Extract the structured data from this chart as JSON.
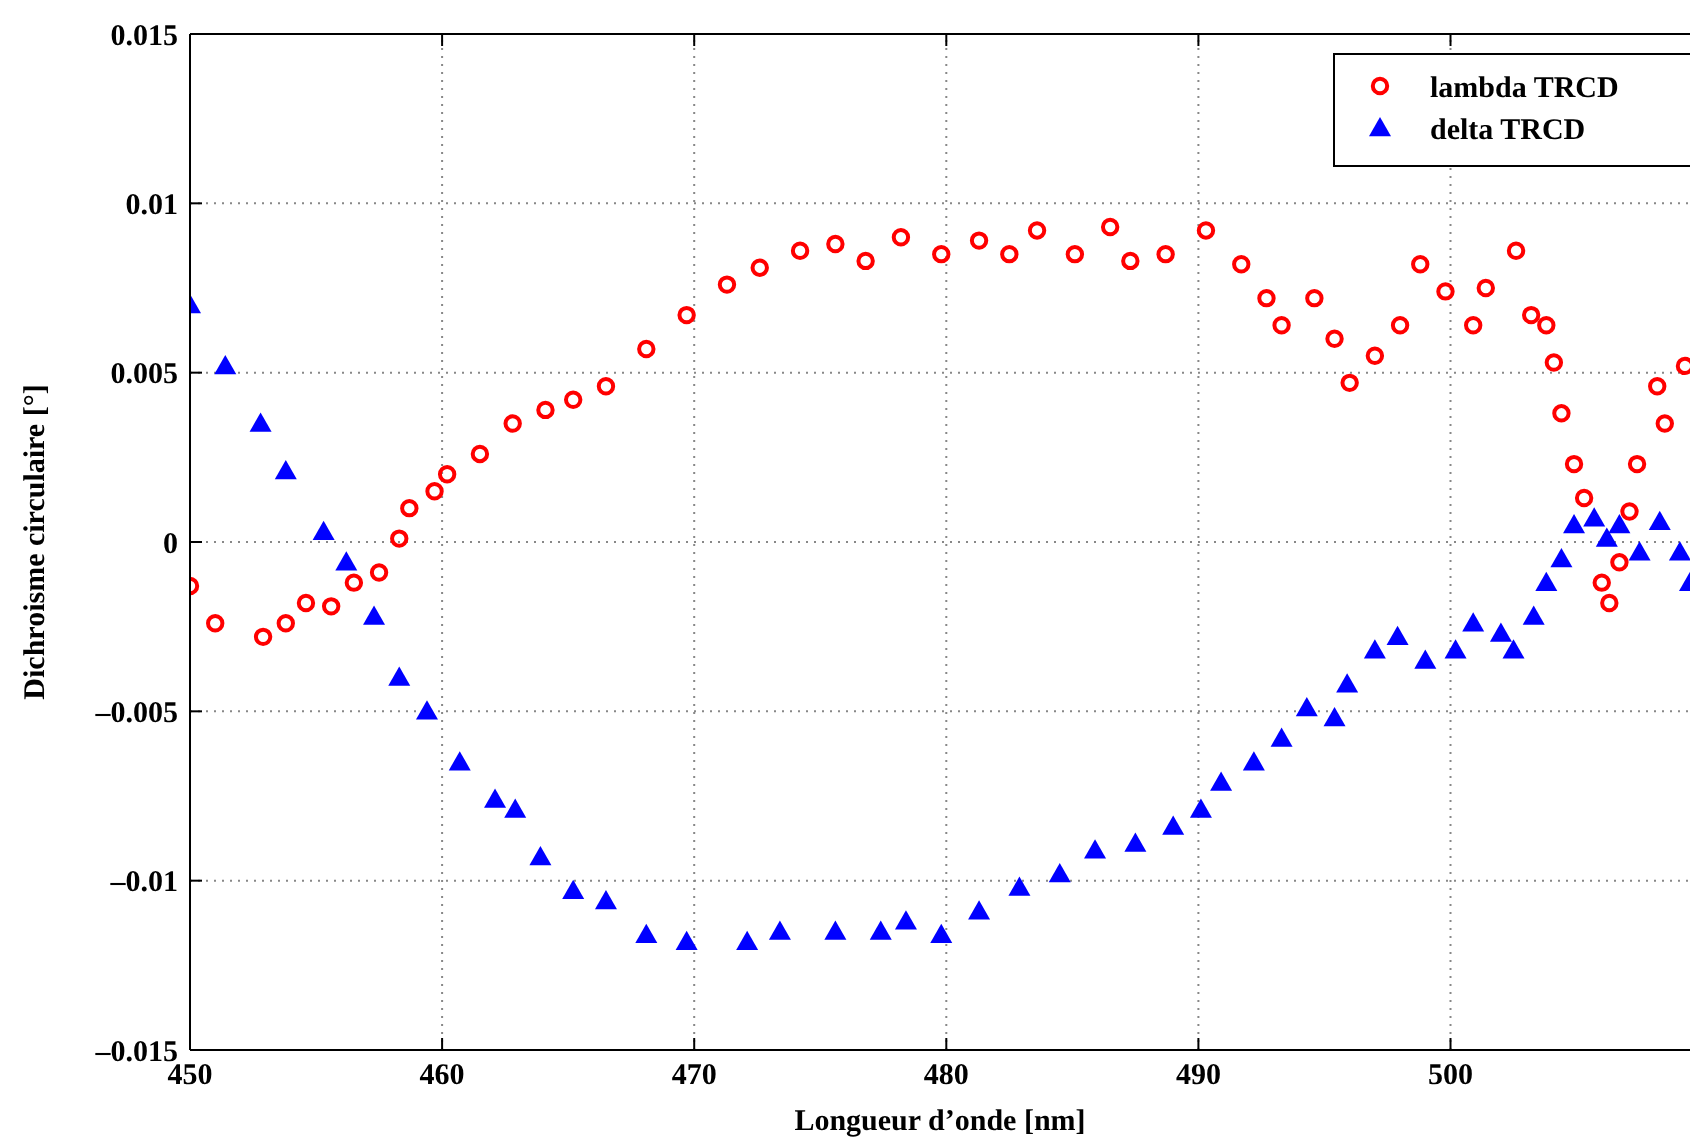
{
  "chart_data": {
    "type": "scatter",
    "xlabel": "Longueur d’onde [nm]",
    "ylabel": "Dichroisme circulaire [°]",
    "xlim": [
      450,
      509.5
    ],
    "ylim": [
      -0.015,
      0.015
    ],
    "xticks": [
      450,
      460,
      470,
      480,
      490,
      500
    ],
    "yticks": [
      {
        "value": -0.015,
        "label": "–0.015"
      },
      {
        "value": -0.01,
        "label": "–0.01"
      },
      {
        "value": -0.005,
        "label": "–0.005"
      },
      0,
      0.005,
      0.01,
      0.015
    ],
    "grid": true,
    "legend": "top right",
    "series": [
      {
        "name": "lambda TRCD",
        "color": "#ff0000",
        "marker": "circle",
        "x": [
          450,
          451,
          452.9,
          453.8,
          454.6,
          455.6,
          456.5,
          457.5,
          458.3,
          458.7,
          459.7,
          460.2,
          461.5,
          462.8,
          464.1,
          465.2,
          466.5,
          468.1,
          469.7,
          471.3,
          472.6,
          474.2,
          475.6,
          476.8,
          478.2,
          479.8,
          481.3,
          482.5,
          483.6,
          485.1,
          486.5,
          487.3,
          488.7,
          490.3,
          491.7,
          492.7,
          493.3,
          494.6,
          495.4,
          496,
          497,
          498,
          498.8,
          499.8,
          500.9,
          501.4,
          502.6,
          503.2,
          503.8,
          504.1,
          504.4,
          504.9,
          505.3,
          506,
          506.3,
          506.7,
          507.1,
          507.4,
          508.2,
          508.5,
          509.3
        ],
        "values": [
          -0.0013,
          -0.0024,
          -0.0028,
          -0.0024,
          -0.0018,
          -0.0019,
          -0.0012,
          -0.0009,
          0.0001,
          0.001,
          0.0015,
          0.002,
          0.0026,
          0.0035,
          0.0039,
          0.0042,
          0.0046,
          0.0057,
          0.0067,
          0.0076,
          0.0081,
          0.0086,
          0.0088,
          0.0083,
          0.009,
          0.0085,
          0.0089,
          0.0085,
          0.0092,
          0.0085,
          0.0093,
          0.0083,
          0.0085,
          0.0092,
          0.0082,
          0.0072,
          0.0064,
          0.0072,
          0.006,
          0.0047,
          0.0055,
          0.0064,
          0.0082,
          0.0074,
          0.0064,
          0.0075,
          0.0086,
          0.0067,
          0.0064,
          0.0053,
          0.0038,
          0.0023,
          0.0013,
          -0.0012,
          -0.0018,
          -0.0006,
          0.0009,
          0.0023,
          0.0046,
          0.0035,
          0.0052
        ]
      },
      {
        "name": "delta TRCD",
        "color": "#0000ff",
        "marker": "triangle",
        "x": [
          450,
          451.4,
          452.8,
          453.8,
          455.3,
          456.2,
          457.3,
          458.3,
          459.4,
          460.7,
          462.1,
          462.9,
          463.9,
          465.2,
          466.5,
          468.1,
          469.7,
          472.1,
          473.4,
          475.6,
          477.4,
          478.4,
          479.8,
          481.3,
          482.9,
          484.5,
          485.9,
          487.5,
          489,
          490.1,
          490.9,
          492.2,
          493.3,
          494.3,
          495.4,
          495.9,
          497,
          497.9,
          499,
          500.2,
          500.9,
          502,
          502.5,
          503.3,
          503.8,
          504.4,
          504.9,
          505.7,
          506.2,
          506.7,
          507.5,
          508.3,
          509.1,
          509.5
        ],
        "values": [
          0.007,
          0.0052,
          0.0035,
          0.0021,
          0.0003,
          -0.0006,
          -0.0022,
          -0.004,
          -0.005,
          -0.0065,
          -0.0076,
          -0.0079,
          -0.0093,
          -0.0103,
          -0.0106,
          -0.0116,
          -0.0118,
          -0.0118,
          -0.0115,
          -0.0115,
          -0.0115,
          -0.0112,
          -0.0116,
          -0.0109,
          -0.0102,
          -0.0098,
          -0.0091,
          -0.0089,
          -0.0084,
          -0.0079,
          -0.0071,
          -0.0065,
          -0.0058,
          -0.0049,
          -0.0052,
          -0.0042,
          -0.0032,
          -0.0028,
          -0.0035,
          -0.0032,
          -0.0024,
          -0.0027,
          -0.0032,
          -0.0022,
          -0.0012,
          -0.0005,
          0.0005,
          0.0007,
          0.0001,
          0.0005,
          -0.0003,
          0.0006,
          -0.0003,
          -0.0012
        ]
      }
    ]
  }
}
